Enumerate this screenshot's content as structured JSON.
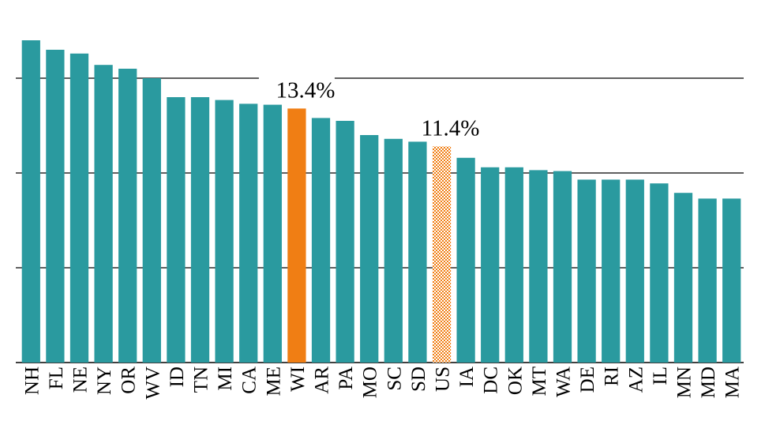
{
  "chart_data": {
    "type": "bar",
    "title": "",
    "xlabel": "",
    "ylabel": "",
    "ylim": [
      0,
      20
    ],
    "grid": true,
    "colors": {
      "default": "#2a9a9f",
      "highlight": "#f07e14",
      "us_pattern": "#f07e14"
    },
    "highlight_category": "WI",
    "pattern_category": "US",
    "categories": [
      "NH",
      "FL",
      "NE",
      "NY",
      "OR",
      "WV",
      "ID",
      "TN",
      "MI",
      "CA",
      "ME",
      "WI",
      "AR",
      "PA",
      "MO",
      "SC",
      "SD",
      "US",
      "IA",
      "DC",
      "OK",
      "MT",
      "WA",
      "DE",
      "RI",
      "AZ",
      "IL",
      "MN",
      "MD",
      "MA"
    ],
    "values": [
      17.0,
      16.5,
      16.3,
      15.7,
      15.5,
      15.0,
      14.0,
      14.0,
      13.85,
      13.65,
      13.6,
      13.4,
      12.9,
      12.75,
      12.0,
      11.8,
      11.65,
      11.4,
      10.8,
      10.3,
      10.3,
      10.15,
      10.1,
      9.65,
      9.65,
      9.65,
      9.45,
      8.95,
      8.65,
      8.65
    ],
    "annotations": [
      {
        "category": "WI",
        "text": "13.4%"
      },
      {
        "category": "US",
        "text": "11.4%"
      }
    ]
  }
}
